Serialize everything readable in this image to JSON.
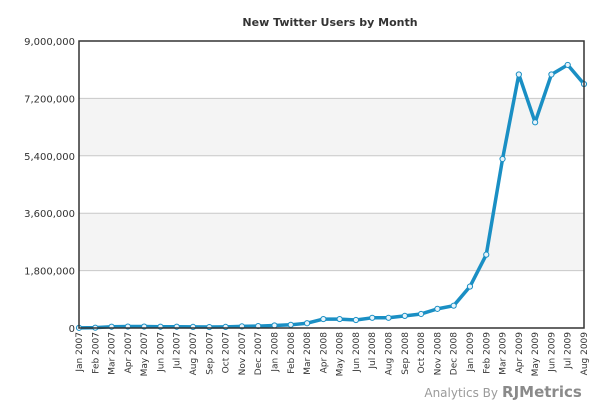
{
  "chart_data": {
    "type": "line",
    "title": "New Twitter Users by Month",
    "xlabel": "",
    "ylabel": "",
    "ylim": [
      0,
      9000000
    ],
    "y_ticks": [
      "0",
      "1,800,000",
      "3,600,000",
      "5,400,000",
      "7,200,000",
      "9,000,000"
    ],
    "y_tick_values": [
      0,
      1800000,
      3600000,
      5400000,
      7200000,
      9000000
    ],
    "grid": true,
    "categories": [
      "Jan 2007",
      "Feb 2007",
      "Mar 2007",
      "Apr 2007",
      "May 2007",
      "Jun 2007",
      "Jul 2007",
      "Aug 2007",
      "Sep 2007",
      "Oct 2007",
      "Nov 2007",
      "Dec 2007",
      "Jan 2008",
      "Feb 2008",
      "Mar 2008",
      "Apr 2008",
      "May 2008",
      "Jun 2008",
      "Jul 2008",
      "Aug 2008",
      "Sep 2008",
      "Oct 2008",
      "Nov 2008",
      "Dec 2008",
      "Jan 2009",
      "Feb 2009",
      "Mar 2009",
      "Apr 2009",
      "May 2009",
      "Jun 2009",
      "Jul 2009",
      "Aug 2009"
    ],
    "series": [
      {
        "values": [
          5000,
          10000,
          40000,
          45000,
          45000,
          40000,
          40000,
          35000,
          30000,
          35000,
          50000,
          60000,
          80000,
          100000,
          150000,
          280000,
          280000,
          250000,
          320000,
          320000,
          380000,
          440000,
          600000,
          700000,
          1300000,
          2300000,
          5300000,
          7950000,
          6450000,
          7950000,
          8250000,
          7650000
        ],
        "color": "#1a8fc4"
      }
    ]
  },
  "branding": {
    "prefix": "Analytics By",
    "logo_r": "R",
    "logo_j": "J",
    "logo_rest": "Metrics",
    "logo_r_color": "#d2543b",
    "logo_j_color": "#7a7a7a",
    "logo_rest_color": "#8a8a8a"
  },
  "colors": {
    "band_fill": "#f4f4f4",
    "grid": "#c8c8c8",
    "axis": "#333333",
    "marker_fill": "#e8f4fb"
  }
}
